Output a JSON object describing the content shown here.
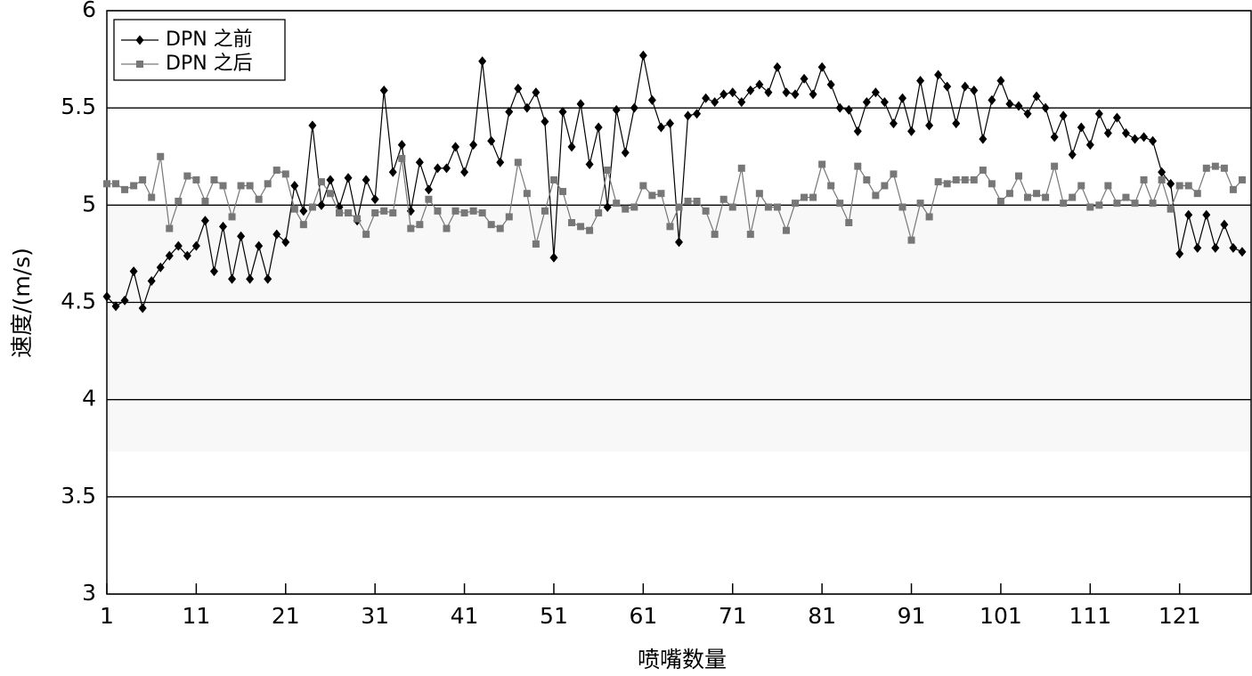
{
  "chart_data": {
    "type": "line",
    "x_label": "喷嘴数量",
    "y_label": "速度/(m/s)",
    "x": [
      1,
      2,
      3,
      4,
      5,
      6,
      7,
      8,
      9,
      10,
      11,
      12,
      13,
      14,
      15,
      16,
      17,
      18,
      19,
      20,
      21,
      22,
      23,
      24,
      25,
      26,
      27,
      28,
      29,
      30,
      31,
      32,
      33,
      34,
      35,
      36,
      37,
      38,
      39,
      40,
      41,
      42,
      43,
      44,
      45,
      46,
      47,
      48,
      49,
      50,
      51,
      52,
      53,
      54,
      55,
      56,
      57,
      58,
      59,
      60,
      61,
      62,
      63,
      64,
      65,
      66,
      67,
      68,
      69,
      70,
      71,
      72,
      73,
      74,
      75,
      76,
      77,
      78,
      79,
      80,
      81,
      82,
      83,
      84,
      85,
      86,
      87,
      88,
      89,
      90,
      91,
      92,
      93,
      94,
      95,
      96,
      97,
      98,
      99,
      100,
      101,
      102,
      103,
      104,
      105,
      106,
      107,
      108,
      109,
      110,
      111,
      112,
      113,
      114,
      115,
      116,
      117,
      118,
      119,
      120,
      121,
      122,
      123,
      124,
      125,
      126,
      127,
      128
    ],
    "series": [
      {
        "name": "DPN 之前",
        "color": "#000000",
        "marker": "diamond",
        "values": [
          4.53,
          4.48,
          4.51,
          4.66,
          4.47,
          4.61,
          4.68,
          4.74,
          4.79,
          4.74,
          4.79,
          4.92,
          4.66,
          4.89,
          4.62,
          4.84,
          4.62,
          4.79,
          4.62,
          4.85,
          4.81,
          5.1,
          4.97,
          5.41,
          5.0,
          5.13,
          4.99,
          5.14,
          4.92,
          5.13,
          5.03,
          5.59,
          5.17,
          5.31,
          4.97,
          5.22,
          5.08,
          5.19,
          5.19,
          5.3,
          5.17,
          5.31,
          5.74,
          5.33,
          5.22,
          5.48,
          5.6,
          5.5,
          5.58,
          5.43,
          4.73,
          5.48,
          5.3,
          5.52,
          5.21,
          5.4,
          4.99,
          5.49,
          5.27,
          5.5,
          5.77,
          5.54,
          5.4,
          5.42,
          4.81,
          5.46,
          5.47,
          5.55,
          5.53,
          5.57,
          5.58,
          5.53,
          5.59,
          5.62,
          5.58,
          5.71,
          5.58,
          5.57,
          5.65,
          5.57,
          5.71,
          5.62,
          5.5,
          5.49,
          5.38,
          5.53,
          5.58,
          5.53,
          5.42,
          5.55,
          5.38,
          5.64,
          5.41,
          5.67,
          5.61,
          5.42,
          5.61,
          5.59,
          5.34,
          5.54,
          5.64,
          5.52,
          5.51,
          5.47,
          5.56,
          5.5,
          5.35,
          5.46,
          5.26,
          5.4,
          5.31,
          5.47,
          5.37,
          5.45,
          5.37,
          5.34,
          5.35,
          5.33,
          5.17,
          5.11,
          4.75,
          4.95,
          4.78,
          4.95,
          4.78,
          4.9,
          4.78,
          4.76
        ]
      },
      {
        "name": "DPN 之后",
        "color": "#777777",
        "marker": "square",
        "values": [
          5.11,
          5.11,
          5.08,
          5.1,
          5.13,
          5.04,
          5.25,
          4.88,
          5.02,
          5.15,
          5.13,
          5.02,
          5.13,
          5.1,
          4.94,
          5.1,
          5.1,
          5.03,
          5.11,
          5.18,
          5.16,
          4.98,
          4.9,
          4.99,
          5.12,
          5.06,
          4.96,
          4.96,
          4.93,
          4.85,
          4.96,
          4.97,
          4.96,
          5.24,
          4.88,
          4.9,
          5.03,
          4.97,
          4.88,
          4.97,
          4.96,
          4.97,
          4.96,
          4.9,
          4.88,
          4.94,
          5.22,
          5.06,
          4.8,
          4.97,
          5.13,
          5.07,
          4.91,
          4.89,
          4.87,
          4.96,
          5.18,
          5.01,
          4.98,
          4.99,
          5.1,
          5.05,
          5.06,
          4.89,
          4.99,
          5.02,
          5.02,
          4.97,
          4.85,
          5.03,
          4.99,
          5.19,
          4.85,
          5.06,
          4.99,
          4.99,
          4.87,
          5.01,
          5.04,
          5.04,
          5.21,
          5.1,
          5.01,
          4.91,
          5.2,
          5.13,
          5.05,
          5.1,
          5.16,
          4.99,
          4.82,
          5.01,
          4.94,
          5.12,
          5.11,
          5.13,
          5.13,
          5.13,
          5.18,
          5.11,
          5.02,
          5.06,
          5.15,
          5.04,
          5.06,
          5.04,
          5.2,
          5.01,
          5.04,
          5.1,
          4.99,
          5.0,
          5.1,
          5.01,
          5.04,
          5.01,
          5.13,
          5.01,
          5.13,
          4.98,
          5.1,
          5.1,
          5.06,
          5.19,
          5.2,
          5.19,
          5.08,
          5.13
        ]
      }
    ],
    "xlim": [
      1,
      129
    ],
    "ylim": [
      3,
      6
    ],
    "xticks": [
      1,
      11,
      21,
      31,
      41,
      51,
      61,
      71,
      81,
      91,
      101,
      111,
      121
    ],
    "yticks": [
      3,
      3.5,
      4,
      4.5,
      5,
      5.5,
      6
    ],
    "grid": true,
    "legend": "upper left"
  }
}
